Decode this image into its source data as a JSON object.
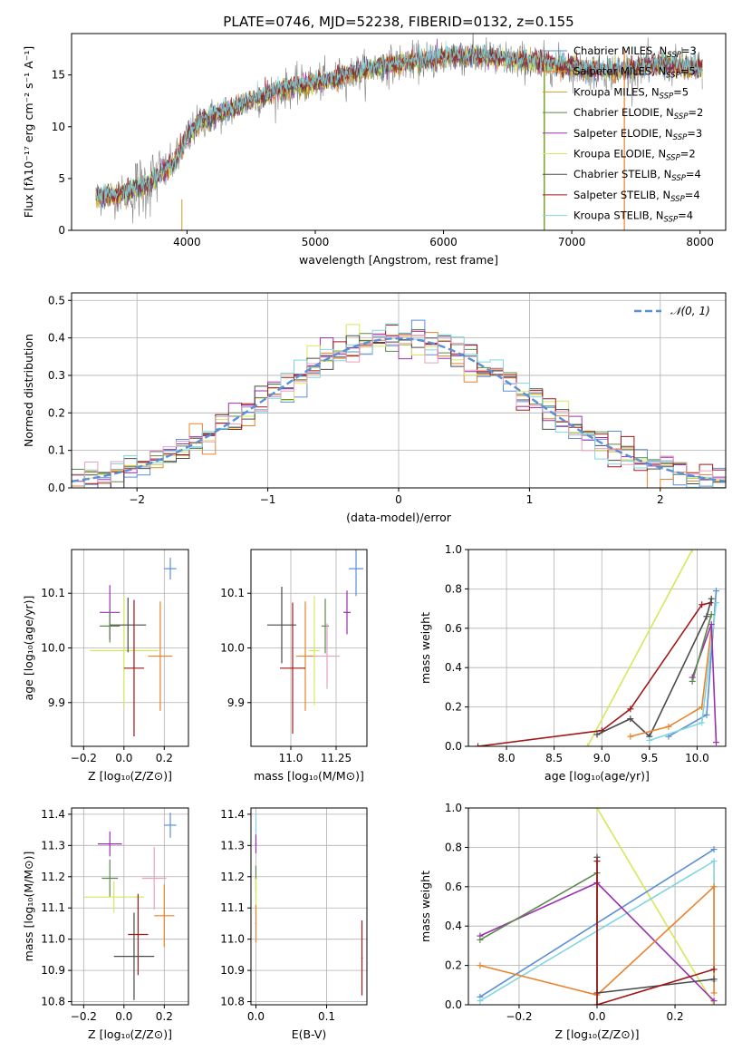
{
  "figure_title": "PLATE=0746, MJD=52238, FIBERID=0132, z=0.155",
  "colors": {
    "Chabrier MILES": "#5b8fd6",
    "Salpeter MILES": "#e8842c",
    "Kroupa MILES": "#c8a020",
    "Chabrier ELODIE": "#5c8a4a",
    "Salpeter ELODIE": "#9b30b0",
    "Kroupa ELODIE": "#d6e85a",
    "Chabrier STELIB": "#4a4a4a",
    "Salpeter STELIB": "#a01818",
    "Kroupa STELIB": "#7fd6e0",
    "gaussian": "#5b8fd6",
    "data": "#808080",
    "pink": "#e8a0c0"
  },
  "chart_data": [
    {
      "id": "spectrum",
      "type": "line",
      "title": "PLATE=0746, MJD=52238, FIBERID=0132, z=0.155",
      "xlabel": "wavelength [Angstrom, rest frame]",
      "ylabel": "Flux [fλ10⁻¹⁷ erg cm⁻² s⁻¹ A⁻¹]",
      "xlim": [
        3100,
        8200
      ],
      "ylim": [
        0,
        19
      ],
      "xticks": [
        4000,
        5000,
        6000,
        7000,
        8000
      ],
      "yticks": [
        0,
        5,
        10,
        15
      ],
      "legend_position": "top-right",
      "legend": [
        "Chabrier MILES, N_SSP=3",
        "Salpeter MILES, N_SSP=5",
        "Kroupa MILES, N_SSP=5",
        "Chabrier ELODIE, N_SSP=2",
        "Salpeter ELODIE, N_SSP=3",
        "Kroupa ELODIE, N_SSP=2",
        "Chabrier STELIB, N_SSP=4",
        "Salpeter STELIB, N_SSP=4",
        "Kroupa STELIB, N_SSP=4"
      ],
      "series_colors": [
        "Chabrier MILES",
        "Salpeter MILES",
        "Kroupa MILES",
        "Chabrier ELODIE",
        "Salpeter ELODIE",
        "Kroupa ELODIE",
        "Chabrier STELIB",
        "Salpeter STELIB",
        "Kroupa STELIB"
      ],
      "continuum_x": [
        3300,
        3500,
        3700,
        3900,
        4000,
        4100,
        4300,
        4500,
        4700,
        4900,
        5100,
        5300,
        5500,
        5700,
        5900,
        6100,
        6300,
        6500,
        6700,
        6900,
        7100,
        7300,
        7500,
        7700,
        7900,
        8000
      ],
      "continuum_y": [
        3.2,
        3.5,
        4.5,
        6.5,
        9.0,
        10.5,
        11.5,
        12.5,
        13.5,
        14.0,
        14.5,
        15.2,
        15.8,
        16.2,
        16.5,
        16.8,
        16.8,
        16.5,
        16.3,
        16.0,
        15.6,
        15.4,
        15.6,
        16.0,
        15.8,
        15.5
      ]
    },
    {
      "id": "residuals",
      "type": "histogram",
      "xlabel": "(data-model)/error",
      "ylabel": "Normed distribution",
      "xlim": [
        -2.5,
        2.5
      ],
      "ylim": [
        0,
        0.52
      ],
      "xticks": [
        -2,
        -1,
        0,
        1,
        2
      ],
      "yticks": [
        0.0,
        0.1,
        0.2,
        0.3,
        0.4,
        0.5
      ],
      "grid": true,
      "legend_position": "top-right",
      "legend": [
        "𝒩(0, 1)"
      ],
      "bin_width": 0.1
    },
    {
      "id": "age_vs_Z",
      "type": "errorbar",
      "xlabel": "Z [log₁₀(Z/Z⊙)]",
      "ylabel": "age  [log₁₀(age/yr)]",
      "xlim": [
        -0.26,
        0.32
      ],
      "ylim": [
        9.82,
        10.18
      ],
      "xticks": [
        -0.2,
        0.0,
        0.2
      ],
      "yticks": [
        9.9,
        10.0,
        10.1
      ],
      "grid": true,
      "points": [
        {
          "s": "Chabrier MILES",
          "x": 0.23,
          "y": 10.145,
          "xe": 0.03,
          "ye": 0.02
        },
        {
          "s": "Salpeter MILES",
          "x": 0.18,
          "y": 9.985,
          "xe": 0.06,
          "ye": 0.1
        },
        {
          "s": "Kroupa ELODIE",
          "x": 0.0,
          "y": 9.995,
          "xe": 0.17,
          "ye": 0.1
        },
        {
          "s": "Salpeter ELODIE",
          "x": -0.07,
          "y": 10.065,
          "xe": 0.05,
          "ye": 0.05
        },
        {
          "s": "Chabrier ELODIE",
          "x": -0.07,
          "y": 10.04,
          "xe": 0.05,
          "ye": 0.03
        },
        {
          "s": "Chabrier STELIB",
          "x": 0.02,
          "y": 10.042,
          "xe": 0.09,
          "ye": 0.05
        },
        {
          "s": "Salpeter STELIB",
          "x": 0.05,
          "y": 9.963,
          "xe": 0.05,
          "ye": 0.125
        }
      ]
    },
    {
      "id": "age_vs_mass",
      "type": "errorbar",
      "xlabel": "mass [log₁₀(M/M⊙)]",
      "ylabel": "",
      "xlim": [
        10.78,
        11.42
      ],
      "ylim": [
        9.82,
        10.18
      ],
      "xticks": [
        11.0,
        11.25
      ],
      "yticks": [
        9.9,
        10.0,
        10.1
      ],
      "grid": true,
      "points": [
        {
          "s": "Chabrier MILES",
          "x": 11.36,
          "y": 10.145,
          "xe": 0.04,
          "ye": 0.05
        },
        {
          "s": "Salpeter MILES",
          "x": 11.08,
          "y": 9.985,
          "xe": 0.05,
          "ye": 0.1
        },
        {
          "s": "Kroupa ELODIE",
          "x": 11.13,
          "y": 9.995,
          "xe": 0.03,
          "ye": 0.1
        },
        {
          "s": "Salpeter ELODIE",
          "x": 11.31,
          "y": 10.065,
          "xe": 0.02,
          "ye": 0.04
        },
        {
          "s": "Chabrier ELODIE",
          "x": 11.19,
          "y": 10.04,
          "xe": 0.02,
          "ye": 0.05
        },
        {
          "s": "Chabrier STELIB",
          "x": 10.95,
          "y": 10.042,
          "xe": 0.08,
          "ye": 0.07
        },
        {
          "s": "Salpeter STELIB",
          "x": 11.01,
          "y": 9.963,
          "xe": 0.07,
          "ye": 0.12
        },
        {
          "s": "pink",
          "x": 11.2,
          "y": 9.985,
          "xe": 0.07,
          "ye": 0.06
        }
      ]
    },
    {
      "id": "weight_vs_age",
      "type": "line",
      "xlabel": "age  [log₁₀(age/yr)]",
      "ylabel": "mass weight",
      "xlim": [
        7.6,
        10.3
      ],
      "ylim": [
        0,
        1.0
      ],
      "xticks": [
        8.0,
        8.5,
        9.0,
        9.5,
        10.0
      ],
      "yticks": [
        0.0,
        0.2,
        0.4,
        0.6,
        0.8,
        1.0
      ],
      "grid": true,
      "series": [
        {
          "s": "Kroupa ELODIE",
          "x": [
            8.85,
            9.95
          ],
          "y": [
            0.0,
            1.0
          ]
        },
        {
          "s": "Salpeter STELIB",
          "x": [
            7.7,
            9.0,
            9.3,
            10.05,
            10.15
          ],
          "y": [
            0.0,
            0.08,
            0.19,
            0.72,
            0.73
          ]
        },
        {
          "s": "Chabrier STELIB",
          "x": [
            8.95,
            9.3,
            9.5,
            10.1,
            10.15
          ],
          "y": [
            0.06,
            0.14,
            0.05,
            0.66,
            0.75
          ]
        },
        {
          "s": "Salpeter MILES",
          "x": [
            9.3,
            9.7,
            10.05,
            10.15
          ],
          "y": [
            0.05,
            0.1,
            0.2,
            0.6
          ]
        },
        {
          "s": "Chabrier MILES",
          "x": [
            9.7,
            10.1,
            10.2
          ],
          "y": [
            0.05,
            0.16,
            0.79
          ]
        },
        {
          "s": "Kroupa STELIB",
          "x": [
            9.5,
            10.05,
            10.2
          ],
          "y": [
            0.03,
            0.12,
            0.73
          ]
        },
        {
          "s": "Salpeter ELODIE",
          "x": [
            9.95,
            10.15,
            10.2
          ],
          "y": [
            0.35,
            0.62,
            0.02
          ]
        },
        {
          "s": "Chabrier ELODIE",
          "x": [
            9.95,
            10.15
          ],
          "y": [
            0.33,
            0.67
          ]
        }
      ]
    },
    {
      "id": "mass_vs_Z",
      "type": "errorbar",
      "xlabel": "Z [log₁₀(Z/Z⊙)]",
      "ylabel": "mass [log₁₀(M/M⊙)]",
      "xlim": [
        -0.26,
        0.32
      ],
      "ylim": [
        10.79,
        11.42
      ],
      "xticks": [
        -0.2,
        0.0,
        0.2
      ],
      "yticks": [
        10.8,
        10.9,
        11.0,
        11.1,
        11.2,
        11.3,
        11.4
      ],
      "grid": true,
      "points": [
        {
          "s": "Chabrier MILES",
          "x": 0.23,
          "y": 11.365,
          "xe": 0.03,
          "ye": 0.04
        },
        {
          "s": "Salpeter ELODIE",
          "x": -0.07,
          "y": 11.305,
          "xe": 0.06,
          "ye": 0.04
        },
        {
          "s": "Chabrier ELODIE",
          "x": -0.07,
          "y": 11.195,
          "xe": 0.04,
          "ye": 0.06
        },
        {
          "s": "pink",
          "x": 0.15,
          "y": 11.195,
          "xe": 0.06,
          "ye": 0.1
        },
        {
          "s": "Kroupa ELODIE",
          "x": -0.05,
          "y": 11.135,
          "xe": 0.15,
          "ye": 0.05
        },
        {
          "s": "Salpeter MILES",
          "x": 0.2,
          "y": 11.075,
          "xe": 0.05,
          "ye": 0.1
        },
        {
          "s": "Salpeter STELIB",
          "x": 0.07,
          "y": 11.015,
          "xe": 0.05,
          "ye": 0.13
        },
        {
          "s": "Chabrier STELIB",
          "x": 0.05,
          "y": 10.945,
          "xe": 0.1,
          "ye": 0.14
        }
      ]
    },
    {
      "id": "mass_vs_ebv",
      "type": "errorbar",
      "xlabel": "E(B-V)",
      "ylabel": "",
      "xlim": [
        -0.007,
        0.157
      ],
      "ylim": [
        10.79,
        11.42
      ],
      "xticks": [
        0.0,
        0.1
      ],
      "yticks": [
        10.8,
        10.9,
        11.0,
        11.1,
        11.2,
        11.3,
        11.4
      ],
      "grid": true,
      "points": [
        {
          "s": "Kroupa STELIB",
          "x": 0.0,
          "y": 11.35,
          "xe": 0.001,
          "ye": 0.05
        },
        {
          "s": "Salpeter ELODIE",
          "x": 0.0,
          "y": 11.305,
          "xe": 0.001,
          "ye": 0.03
        },
        {
          "s": "Chabrier ELODIE",
          "x": 0.0,
          "y": 11.195,
          "xe": 0.001,
          "ye": 0.04
        },
        {
          "s": "Kroupa ELODIE",
          "x": 0.0,
          "y": 11.135,
          "xe": 0.001,
          "ye": 0.06
        },
        {
          "s": "Salpeter MILES",
          "x": 0.0,
          "y": 11.05,
          "xe": 0.001,
          "ye": 0.06
        },
        {
          "s": "Salpeter STELIB",
          "x": 0.15,
          "y": 10.94,
          "xe": 0.001,
          "ye": 0.12
        }
      ]
    },
    {
      "id": "weight_vs_Z",
      "type": "line",
      "xlabel": "Z [log₁₀(Z/Z⊙)]",
      "ylabel": "mass weight",
      "xlim": [
        -0.33,
        0.33
      ],
      "ylim": [
        0,
        1.0
      ],
      "xticks": [
        -0.2,
        0.0,
        0.2
      ],
      "yticks": [
        0.0,
        0.2,
        0.4,
        0.6,
        0.8,
        1.0
      ],
      "grid": true,
      "series": [
        {
          "s": "Kroupa ELODIE",
          "x": [
            0.0,
            0.3
          ],
          "y": [
            1.0,
            0.0
          ]
        },
        {
          "s": "Chabrier MILES",
          "x": [
            -0.3,
            0.3
          ],
          "y": [
            0.04,
            0.79
          ]
        },
        {
          "s": "Kroupa STELIB",
          "x": [
            -0.3,
            0.3,
            0.3
          ],
          "y": [
            0.02,
            0.73,
            0.12
          ]
        },
        {
          "s": "Salpeter ELODIE",
          "x": [
            -0.3,
            0.0,
            0.3
          ],
          "y": [
            0.35,
            0.62,
            0.02
          ]
        },
        {
          "s": "Chabrier ELODIE",
          "x": [
            -0.3,
            0.0,
            0.0
          ],
          "y": [
            0.33,
            0.67,
            0.0
          ]
        },
        {
          "s": "Salpeter MILES",
          "x": [
            -0.3,
            0.0,
            0.3,
            0.3
          ],
          "y": [
            0.2,
            0.05,
            0.6,
            0.06
          ]
        },
        {
          "s": "Chabrier STELIB",
          "x": [
            0.0,
            0.0,
            0.3
          ],
          "y": [
            0.75,
            0.06,
            0.13
          ]
        },
        {
          "s": "Salpeter STELIB",
          "x": [
            0.0,
            0.0,
            0.3
          ],
          "y": [
            0.73,
            0.0,
            0.18
          ]
        }
      ]
    }
  ]
}
